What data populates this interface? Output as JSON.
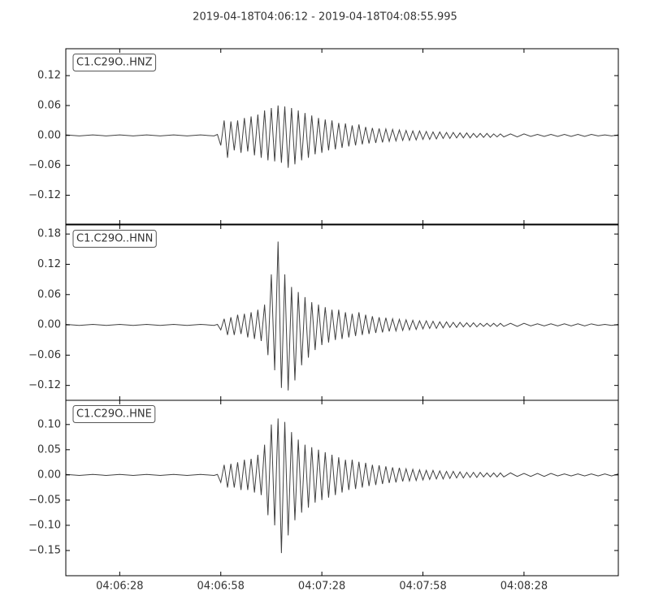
{
  "chart_data": [
    {
      "type": "line",
      "title": "2019-04-18T04:06:12  -  2019-04-18T04:08:55.995",
      "name": "C1.C29O..HNZ",
      "color": "#404040",
      "xlim": [
        0,
        163.995
      ],
      "ylim": [
        -0.178,
        0.174
      ],
      "yticks": [
        {
          "value": 0.12,
          "label": "0.12"
        },
        {
          "value": 0.06,
          "label": "0.06"
        },
        {
          "value": 0,
          "label": "0.00"
        },
        {
          "value": -0.06,
          "label": "−0.06"
        },
        {
          "value": -0.12,
          "label": "−0.12"
        }
      ],
      "x": [
        0,
        4,
        8,
        12,
        16,
        20,
        24,
        28,
        32,
        36,
        40,
        44,
        45,
        46,
        47,
        48,
        49,
        50,
        51,
        52,
        53,
        54,
        55,
        56,
        57,
        58,
        59,
        60,
        61,
        62,
        63,
        64,
        65,
        66,
        67,
        68,
        69,
        70,
        71,
        72,
        73,
        74,
        75,
        76,
        77,
        78,
        79,
        80,
        81,
        82,
        83,
        84,
        85,
        86,
        87,
        88,
        89,
        90,
        91,
        92,
        93,
        94,
        95,
        96,
        97,
        98,
        99,
        100,
        101,
        102,
        103,
        104,
        105,
        106,
        107,
        108,
        109,
        110,
        111,
        112,
        113,
        114,
        115,
        116,
        117,
        118,
        119,
        120,
        121,
        122,
        123,
        124,
        125,
        126,
        127,
        128,
        129,
        130,
        132,
        134,
        136,
        138,
        140,
        142,
        144,
        146,
        148,
        150,
        152,
        154,
        156,
        158,
        160,
        162,
        164
      ],
      "values": [
        0.001,
        -0.001,
        0.001,
        -0.001,
        0.001,
        -0.001,
        0.001,
        -0.001,
        0.001,
        -0.001,
        0.001,
        -0.001,
        0.002,
        -0.02,
        0.03,
        -0.045,
        0.028,
        -0.03,
        0.03,
        -0.035,
        0.035,
        -0.032,
        0.038,
        -0.04,
        0.042,
        -0.045,
        0.05,
        -0.05,
        0.055,
        -0.052,
        0.06,
        -0.055,
        0.058,
        -0.065,
        0.055,
        -0.058,
        0.05,
        -0.05,
        0.045,
        -0.045,
        0.04,
        -0.038,
        0.035,
        -0.035,
        0.032,
        -0.03,
        0.03,
        -0.028,
        0.025,
        -0.025,
        0.024,
        -0.022,
        0.02,
        -0.02,
        0.022,
        -0.018,
        0.017,
        -0.016,
        0.015,
        -0.015,
        0.014,
        -0.014,
        0.013,
        -0.012,
        0.012,
        -0.011,
        0.011,
        -0.01,
        0.01,
        -0.01,
        0.009,
        -0.009,
        0.009,
        -0.008,
        0.008,
        -0.008,
        0.007,
        -0.007,
        0.007,
        -0.006,
        0.006,
        -0.006,
        0.006,
        -0.005,
        0.005,
        -0.005,
        0.005,
        -0.005,
        0.004,
        -0.004,
        0.004,
        -0.004,
        0.004,
        -0.004,
        0.003,
        -0.003,
        0.003,
        -0.003,
        0.003,
        -0.003,
        0.003,
        -0.002,
        0.002,
        -0.002,
        0.002,
        -0.002,
        0.002,
        -0.002,
        0.002,
        -0.002,
        0.002,
        -0.001,
        0.001,
        -0.001,
        0.001
      ]
    },
    {
      "type": "line",
      "name": "C1.C29O..HNN",
      "color": "#404040",
      "xlim": [
        0,
        163.995
      ],
      "ylim": [
        -0.1495,
        0.198
      ],
      "yticks": [
        {
          "value": 0.18,
          "label": "0.18"
        },
        {
          "value": 0.12,
          "label": "0.12"
        },
        {
          "value": 0.06,
          "label": "0.06"
        },
        {
          "value": 0,
          "label": "0.00"
        },
        {
          "value": -0.06,
          "label": "−0.06"
        },
        {
          "value": -0.12,
          "label": "−0.12"
        }
      ],
      "x": [
        0,
        4,
        8,
        12,
        16,
        20,
        24,
        28,
        32,
        36,
        40,
        44,
        45,
        46,
        47,
        48,
        49,
        50,
        51,
        52,
        53,
        54,
        55,
        56,
        57,
        58,
        59,
        60,
        61,
        62,
        63,
        64,
        65,
        66,
        67,
        68,
        69,
        70,
        71,
        72,
        73,
        74,
        75,
        76,
        77,
        78,
        79,
        80,
        81,
        82,
        83,
        84,
        85,
        86,
        87,
        88,
        89,
        90,
        91,
        92,
        93,
        94,
        95,
        96,
        97,
        98,
        99,
        100,
        101,
        102,
        103,
        104,
        105,
        106,
        107,
        108,
        109,
        110,
        111,
        112,
        113,
        114,
        115,
        116,
        117,
        118,
        119,
        120,
        121,
        122,
        123,
        124,
        125,
        126,
        127,
        128,
        129,
        130,
        132,
        134,
        136,
        138,
        140,
        142,
        144,
        146,
        148,
        150,
        152,
        154,
        156,
        158,
        160,
        162,
        164
      ],
      "values": [
        0.001,
        -0.001,
        0.001,
        -0.001,
        0.001,
        -0.001,
        0.001,
        -0.001,
        0.001,
        -0.001,
        0.001,
        -0.001,
        0.001,
        -0.01,
        0.012,
        -0.02,
        0.015,
        -0.02,
        0.02,
        -0.018,
        0.022,
        -0.025,
        0.025,
        -0.028,
        0.03,
        -0.032,
        0.04,
        -0.06,
        0.1,
        -0.09,
        0.165,
        -0.125,
        0.1,
        -0.13,
        0.075,
        -0.11,
        0.065,
        -0.08,
        0.055,
        -0.065,
        0.045,
        -0.05,
        0.04,
        -0.04,
        0.035,
        -0.035,
        0.03,
        -0.03,
        0.03,
        -0.028,
        0.025,
        -0.025,
        0.022,
        -0.022,
        0.025,
        -0.02,
        0.02,
        -0.018,
        0.017,
        -0.016,
        0.015,
        -0.015,
        0.014,
        -0.013,
        0.012,
        -0.012,
        0.011,
        -0.011,
        0.01,
        -0.01,
        0.009,
        -0.009,
        0.008,
        -0.008,
        0.008,
        -0.007,
        0.007,
        -0.007,
        0.006,
        -0.006,
        0.006,
        -0.005,
        0.005,
        -0.005,
        0.005,
        -0.004,
        0.004,
        -0.004,
        0.004,
        -0.004,
        0.003,
        -0.003,
        0.003,
        -0.003,
        0.003,
        -0.003,
        0.003,
        -0.003,
        0.003,
        -0.003,
        0.003,
        -0.002,
        0.002,
        -0.002,
        0.002,
        -0.002,
        0.002,
        -0.002,
        0.002,
        -0.002,
        0.002,
        -0.001,
        0.001,
        -0.001,
        0.001
      ]
    },
    {
      "type": "line",
      "name": "C1.C29O..HNE",
      "color": "#404040",
      "xlim": [
        0,
        163.995
      ],
      "ylim": [
        -0.2,
        0.148
      ],
      "yticks": [
        {
          "value": 0.1,
          "label": "0.10"
        },
        {
          "value": 0.05,
          "label": "0.05"
        },
        {
          "value": 0,
          "label": "0.00"
        },
        {
          "value": -0.05,
          "label": "−0.05"
        },
        {
          "value": -0.1,
          "label": "−0.10"
        },
        {
          "value": -0.15,
          "label": "−0.15"
        }
      ],
      "xticks": [
        {
          "value": 16,
          "label": "04:06:28"
        },
        {
          "value": 46,
          "label": "04:06:58"
        },
        {
          "value": 76,
          "label": "04:07:28"
        },
        {
          "value": 106,
          "label": "04:07:58"
        },
        {
          "value": 136,
          "label": "04:08:28"
        }
      ],
      "x": [
        0,
        4,
        8,
        12,
        16,
        20,
        24,
        28,
        32,
        36,
        40,
        44,
        45,
        46,
        47,
        48,
        49,
        50,
        51,
        52,
        53,
        54,
        55,
        56,
        57,
        58,
        59,
        60,
        61,
        62,
        63,
        64,
        65,
        66,
        67,
        68,
        69,
        70,
        71,
        72,
        73,
        74,
        75,
        76,
        77,
        78,
        79,
        80,
        81,
        82,
        83,
        84,
        85,
        86,
        87,
        88,
        89,
        90,
        91,
        92,
        93,
        94,
        95,
        96,
        97,
        98,
        99,
        100,
        101,
        102,
        103,
        104,
        105,
        106,
        107,
        108,
        109,
        110,
        111,
        112,
        113,
        114,
        115,
        116,
        117,
        118,
        119,
        120,
        121,
        122,
        123,
        124,
        125,
        126,
        127,
        128,
        129,
        130,
        132,
        134,
        136,
        138,
        140,
        142,
        144,
        146,
        148,
        150,
        152,
        154,
        156,
        158,
        160,
        162,
        164
      ],
      "values": [
        0.001,
        -0.001,
        0.001,
        -0.001,
        0.001,
        -0.001,
        0.001,
        -0.001,
        0.001,
        -0.001,
        0.001,
        -0.001,
        0.001,
        -0.015,
        0.02,
        -0.025,
        0.022,
        -0.025,
        0.025,
        -0.03,
        0.03,
        -0.03,
        0.032,
        -0.035,
        0.04,
        -0.04,
        0.06,
        -0.08,
        0.1,
        -0.1,
        0.112,
        -0.155,
        0.105,
        -0.12,
        0.085,
        -0.09,
        0.07,
        -0.075,
        0.06,
        -0.065,
        0.055,
        -0.055,
        0.05,
        -0.05,
        0.045,
        -0.045,
        0.04,
        -0.04,
        0.035,
        -0.035,
        0.03,
        -0.03,
        0.03,
        -0.028,
        0.026,
        -0.025,
        0.024,
        -0.022,
        0.02,
        -0.02,
        0.019,
        -0.018,
        0.017,
        -0.016,
        0.015,
        -0.015,
        0.014,
        -0.013,
        0.012,
        -0.012,
        0.011,
        -0.011,
        0.01,
        -0.01,
        0.009,
        -0.009,
        0.009,
        -0.008,
        0.008,
        -0.008,
        0.007,
        -0.007,
        0.007,
        -0.006,
        0.006,
        -0.006,
        0.005,
        -0.005,
        0.005,
        -0.005,
        0.005,
        -0.004,
        0.004,
        -0.004,
        0.004,
        -0.004,
        0.004,
        -0.004,
        0.004,
        -0.003,
        0.003,
        -0.003,
        0.003,
        -0.003,
        0.003,
        -0.002,
        0.002,
        -0.002,
        0.002,
        -0.002,
        0.002,
        -0.002,
        0.002,
        -0.002,
        0.002
      ]
    }
  ]
}
